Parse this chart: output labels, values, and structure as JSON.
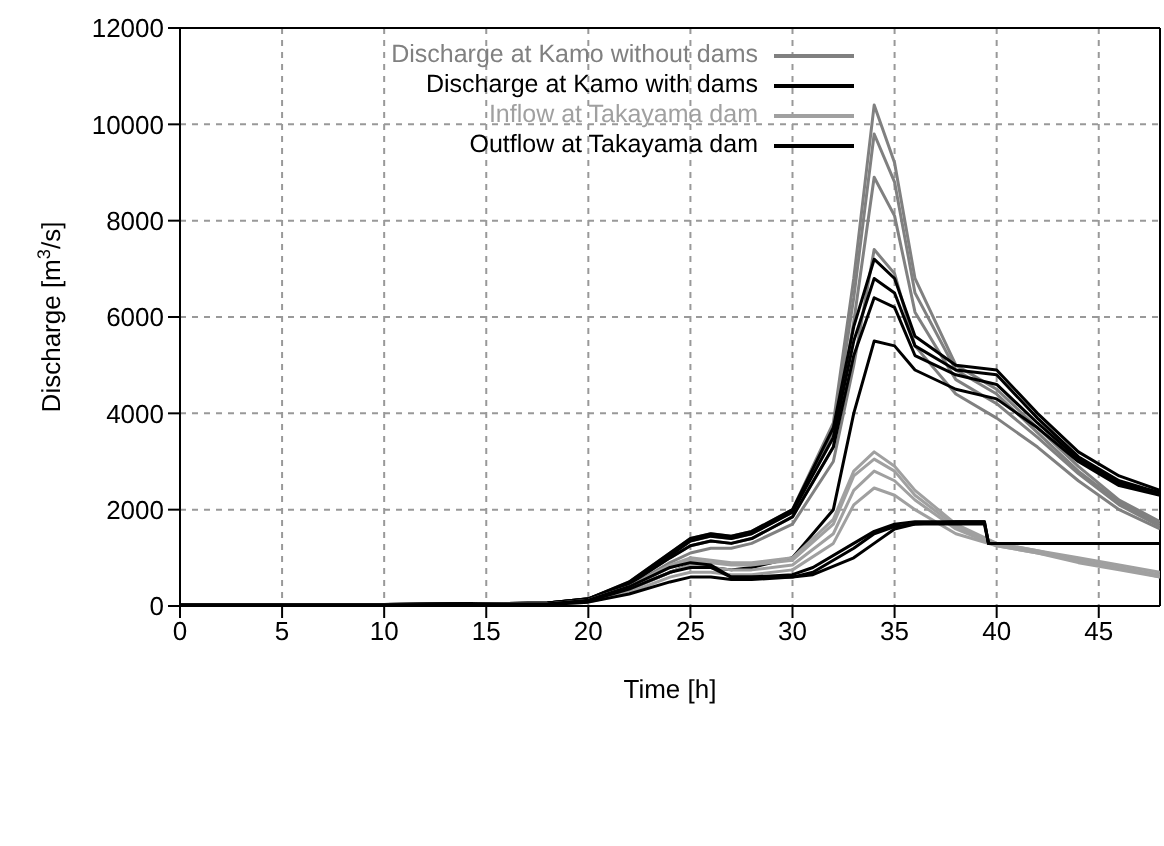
{
  "chart_data": {
    "type": "line",
    "xlabel": "Time [h]",
    "ylabel": "Discharge [m$^{3}$/s]",
    "xlim": [
      0,
      48
    ],
    "ylim": [
      0,
      12000
    ],
    "xticks": [
      0,
      5,
      10,
      15,
      20,
      25,
      30,
      35,
      40,
      45
    ],
    "yticks": [
      0,
      2000,
      4000,
      6000,
      8000,
      10000,
      12000
    ],
    "grid": true,
    "legend": "top",
    "marker": "none",
    "line_style": "solid",
    "x": [
      0,
      10,
      18,
      20,
      22,
      24,
      25,
      26,
      27,
      28,
      30,
      32,
      33,
      34,
      35,
      36,
      38,
      40,
      42,
      44,
      46,
      48
    ],
    "series": [
      {
        "name": "Discharge at Kamo without dams",
        "color": "#808080",
        "values": [
          30,
          30,
          60,
          150,
          500,
          1100,
          1400,
          1500,
          1450,
          1550,
          2000,
          3800,
          6800,
          10400,
          9200,
          6800,
          5000,
          4500,
          3700,
          2900,
          2200,
          1750
        ]
      },
      {
        "color": "#808080",
        "values": [
          30,
          30,
          60,
          150,
          480,
          1050,
          1350,
          1450,
          1400,
          1500,
          1950,
          3600,
          6400,
          9800,
          8800,
          6500,
          4900,
          4400,
          3600,
          2800,
          2150,
          1700
        ]
      },
      {
        "color": "#808080",
        "values": [
          30,
          30,
          60,
          140,
          450,
          1000,
          1250,
          1350,
          1300,
          1400,
          1850,
          3300,
          5900,
          8900,
          8100,
          6100,
          4700,
          4200,
          3500,
          2750,
          2100,
          1650
        ]
      },
      {
        "color": "#808080",
        "values": [
          30,
          30,
          50,
          120,
          400,
          900,
          1100,
          1200,
          1200,
          1300,
          1700,
          3000,
          5000,
          7400,
          6900,
          5400,
          4400,
          3900,
          3300,
          2600,
          2000,
          1600
        ]
      },
      {
        "name": "Discharge at Kamo with dams",
        "color": "#000000",
        "values": [
          30,
          30,
          60,
          150,
          500,
          1100,
          1400,
          1500,
          1450,
          1550,
          2000,
          3700,
          5800,
          7200,
          6800,
          5600,
          5000,
          4900,
          4000,
          3200,
          2700,
          2400
        ]
      },
      {
        "color": "#000000",
        "values": [
          30,
          30,
          60,
          150,
          480,
          1050,
          1350,
          1450,
          1400,
          1500,
          1950,
          3500,
          5500,
          6800,
          6500,
          5400,
          4900,
          4800,
          3900,
          3100,
          2600,
          2350
        ]
      },
      {
        "color": "#000000",
        "values": [
          30,
          30,
          60,
          140,
          450,
          1000,
          1250,
          1350,
          1300,
          1400,
          1850,
          3300,
          5200,
          6400,
          6200,
          5200,
          4800,
          4600,
          3800,
          3050,
          2550,
          2350
        ]
      },
      {
        "color": "#000000",
        "values": [
          30,
          30,
          50,
          100,
          350,
          700,
          850,
          800,
          750,
          800,
          1000,
          2000,
          4000,
          5500,
          5400,
          4900,
          4500,
          4300,
          3700,
          3000,
          2500,
          2300
        ]
      },
      {
        "name": "Inflow at Takayama dam",
        "color": "#a0a0a0",
        "values": [
          20,
          20,
          40,
          120,
          400,
          850,
          1000,
          950,
          900,
          900,
          1000,
          1800,
          2800,
          3200,
          2900,
          2400,
          1700,
          1300,
          1150,
          1000,
          850,
          700
        ]
      },
      {
        "color": "#a0a0a0",
        "values": [
          20,
          20,
          40,
          110,
          380,
          800,
          950,
          900,
          850,
          850,
          950,
          1700,
          2700,
          3050,
          2800,
          2300,
          1650,
          1300,
          1150,
          950,
          800,
          650
        ]
      },
      {
        "color": "#a0a0a0",
        "values": [
          20,
          20,
          40,
          100,
          330,
          700,
          850,
          800,
          750,
          750,
          850,
          1500,
          2400,
          2800,
          2600,
          2200,
          1600,
          1250,
          1100,
          950,
          800,
          600
        ]
      },
      {
        "color": "#a0a0a0",
        "values": [
          20,
          20,
          30,
          80,
          280,
          600,
          700,
          700,
          650,
          650,
          750,
          1300,
          2100,
          2450,
          2300,
          2000,
          1500,
          1250,
          1100,
          900,
          750,
          600
        ]
      },
      {
        "name": "Outflow at Takayama dam",
        "color": "#000000",
        "x": [
          0,
          10,
          18,
          20,
          22,
          24,
          25,
          26,
          27,
          28,
          30,
          31,
          33,
          34,
          35,
          36,
          38,
          39.4,
          39.6,
          40,
          42,
          44,
          46,
          48
        ],
        "values": [
          20,
          20,
          40,
          120,
          400,
          800,
          900,
          850,
          600,
          600,
          650,
          800,
          1300,
          1550,
          1700,
          1750,
          1750,
          1750,
          1300,
          1300,
          1300,
          1300,
          1300,
          1300
        ]
      },
      {
        "color": "#000000",
        "x": [
          0,
          10,
          18,
          20,
          22,
          24,
          25,
          26,
          27,
          28,
          30,
          31,
          33,
          34,
          35,
          36,
          38,
          39.4,
          39.6,
          40,
          42,
          44,
          46,
          48
        ],
        "values": [
          20,
          20,
          40,
          100,
          350,
          700,
          800,
          800,
          600,
          600,
          600,
          700,
          1200,
          1500,
          1650,
          1700,
          1750,
          1750,
          1300,
          1300,
          1300,
          1300,
          1300,
          1300
        ]
      },
      {
        "color": "#000000",
        "x": [
          0,
          10,
          18,
          20,
          22,
          24,
          25,
          26,
          27,
          28,
          30,
          31,
          33,
          34,
          35,
          36,
          38,
          39.4,
          39.6,
          40,
          42,
          44,
          46,
          48
        ],
        "values": [
          20,
          20,
          30,
          80,
          250,
          500,
          600,
          600,
          550,
          550,
          600,
          650,
          1000,
          1300,
          1600,
          1700,
          1700,
          1700,
          1300,
          1300,
          1300,
          1300,
          1300,
          1300
        ]
      }
    ]
  }
}
